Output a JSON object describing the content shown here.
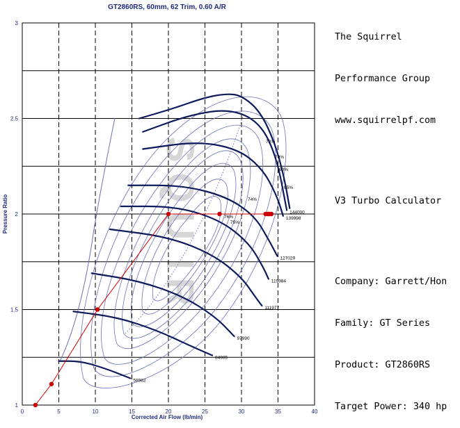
{
  "panel": {
    "line1": "The Squirrel",
    "line2": "Performance Group",
    "line3": "www.squirrelpf.com",
    "line4": "V3 Turbo Calculator",
    "line5": "Company: Garrett/Hon",
    "line6": "Family: GT Series",
    "line7": "Product: GT2860RS",
    "line8": "Target Power: 340 hp"
  },
  "colors": {
    "map_line": "#6a70b8",
    "speed_line": "#0e1a5c",
    "operating_line": "#cc0000",
    "grid": "#000000",
    "axis_text": "#1f2a7a",
    "watermark": "#c9c9c9"
  },
  "chart_data": {
    "type": "scatter",
    "title": "GT2860RS, 60mm, 62 Trim, 0.60 A/R",
    "xlabel": "Corrected Air Flow (lb/min)",
    "ylabel": "Pressure Ratio",
    "xlim": [
      0,
      40
    ],
    "ylim": [
      1,
      3
    ],
    "xticks": [
      "0",
      "5",
      "10",
      "15",
      "20",
      "25",
      "30",
      "35",
      "40"
    ],
    "yticks": [
      "1",
      "1.5",
      "2",
      "2.5",
      "3"
    ],
    "grid": true,
    "operating_line": {
      "name": "",
      "points": [
        {
          "x": 1.8,
          "y": 1.0
        },
        {
          "x": 4.0,
          "y": 1.11
        },
        {
          "x": 10.3,
          "y": 1.5
        },
        {
          "x": 20.0,
          "y": 2.0
        },
        {
          "x": 27.0,
          "y": 2.0
        },
        {
          "x": 33.3,
          "y": 2.0
        },
        {
          "x": 33.6,
          "y": 2.0
        },
        {
          "x": 33.8,
          "y": 2.0
        },
        {
          "x": 34.1,
          "y": 2.0
        }
      ]
    },
    "speed_lines": [
      {
        "label": "58982",
        "points": [
          [
            5.0,
            1.23
          ],
          [
            8.0,
            1.23
          ],
          [
            11.5,
            1.19
          ],
          [
            14.8,
            1.14
          ]
        ]
      },
      {
        "label": "84905",
        "points": [
          [
            7.0,
            1.49
          ],
          [
            13.0,
            1.46
          ],
          [
            18.5,
            1.39
          ],
          [
            23.0,
            1.31
          ],
          [
            26.0,
            1.26
          ]
        ]
      },
      {
        "label": "97990",
        "points": [
          [
            9.5,
            1.69
          ],
          [
            16.0,
            1.65
          ],
          [
            22.0,
            1.57
          ],
          [
            26.5,
            1.46
          ],
          [
            29.0,
            1.36
          ]
        ]
      },
      {
        "label": "111977",
        "points": [
          [
            12.0,
            1.92
          ],
          [
            20.0,
            1.88
          ],
          [
            26.0,
            1.79
          ],
          [
            30.0,
            1.67
          ],
          [
            32.0,
            1.56
          ],
          [
            32.8,
            1.52
          ]
        ]
      },
      {
        "label": "119984",
        "points": [
          [
            13.5,
            2.04
          ],
          [
            21.0,
            2.04
          ],
          [
            27.0,
            1.97
          ],
          [
            31.0,
            1.85
          ],
          [
            33.0,
            1.72
          ],
          [
            33.7,
            1.66
          ]
        ]
      },
      {
        "label": "127029",
        "points": [
          [
            14.5,
            2.15
          ],
          [
            22.0,
            2.15
          ],
          [
            28.0,
            2.09
          ],
          [
            31.8,
            1.99
          ],
          [
            33.8,
            1.86
          ],
          [
            34.9,
            1.78
          ]
        ]
      },
      {
        "label": "139998",
        "points": [
          [
            16.5,
            2.34
          ],
          [
            24.0,
            2.38
          ],
          [
            29.5,
            2.34
          ],
          [
            32.8,
            2.24
          ],
          [
            34.8,
            2.1
          ],
          [
            35.7,
            1.99
          ]
        ]
      },
      {
        "label": "144000",
        "points": [
          [
            16.5,
            2.43
          ],
          [
            23.0,
            2.52
          ],
          [
            28.5,
            2.55
          ],
          [
            32.5,
            2.48
          ],
          [
            34.8,
            2.3
          ],
          [
            36.2,
            2.02
          ]
        ]
      },
      {
        "label": "",
        "points": [
          [
            16.0,
            2.5
          ],
          [
            20.5,
            2.55
          ],
          [
            25.0,
            2.61
          ],
          [
            28.0,
            2.63
          ],
          [
            30.0,
            2.62
          ],
          [
            32.5,
            2.54
          ],
          [
            34.5,
            2.38
          ],
          [
            35.8,
            2.2
          ],
          [
            36.6,
            2.03
          ]
        ]
      }
    ],
    "efficiency_labels": [
      "60%",
      "65%",
      "70%",
      "72%",
      "74%",
      "76%",
      "75%"
    ]
  }
}
